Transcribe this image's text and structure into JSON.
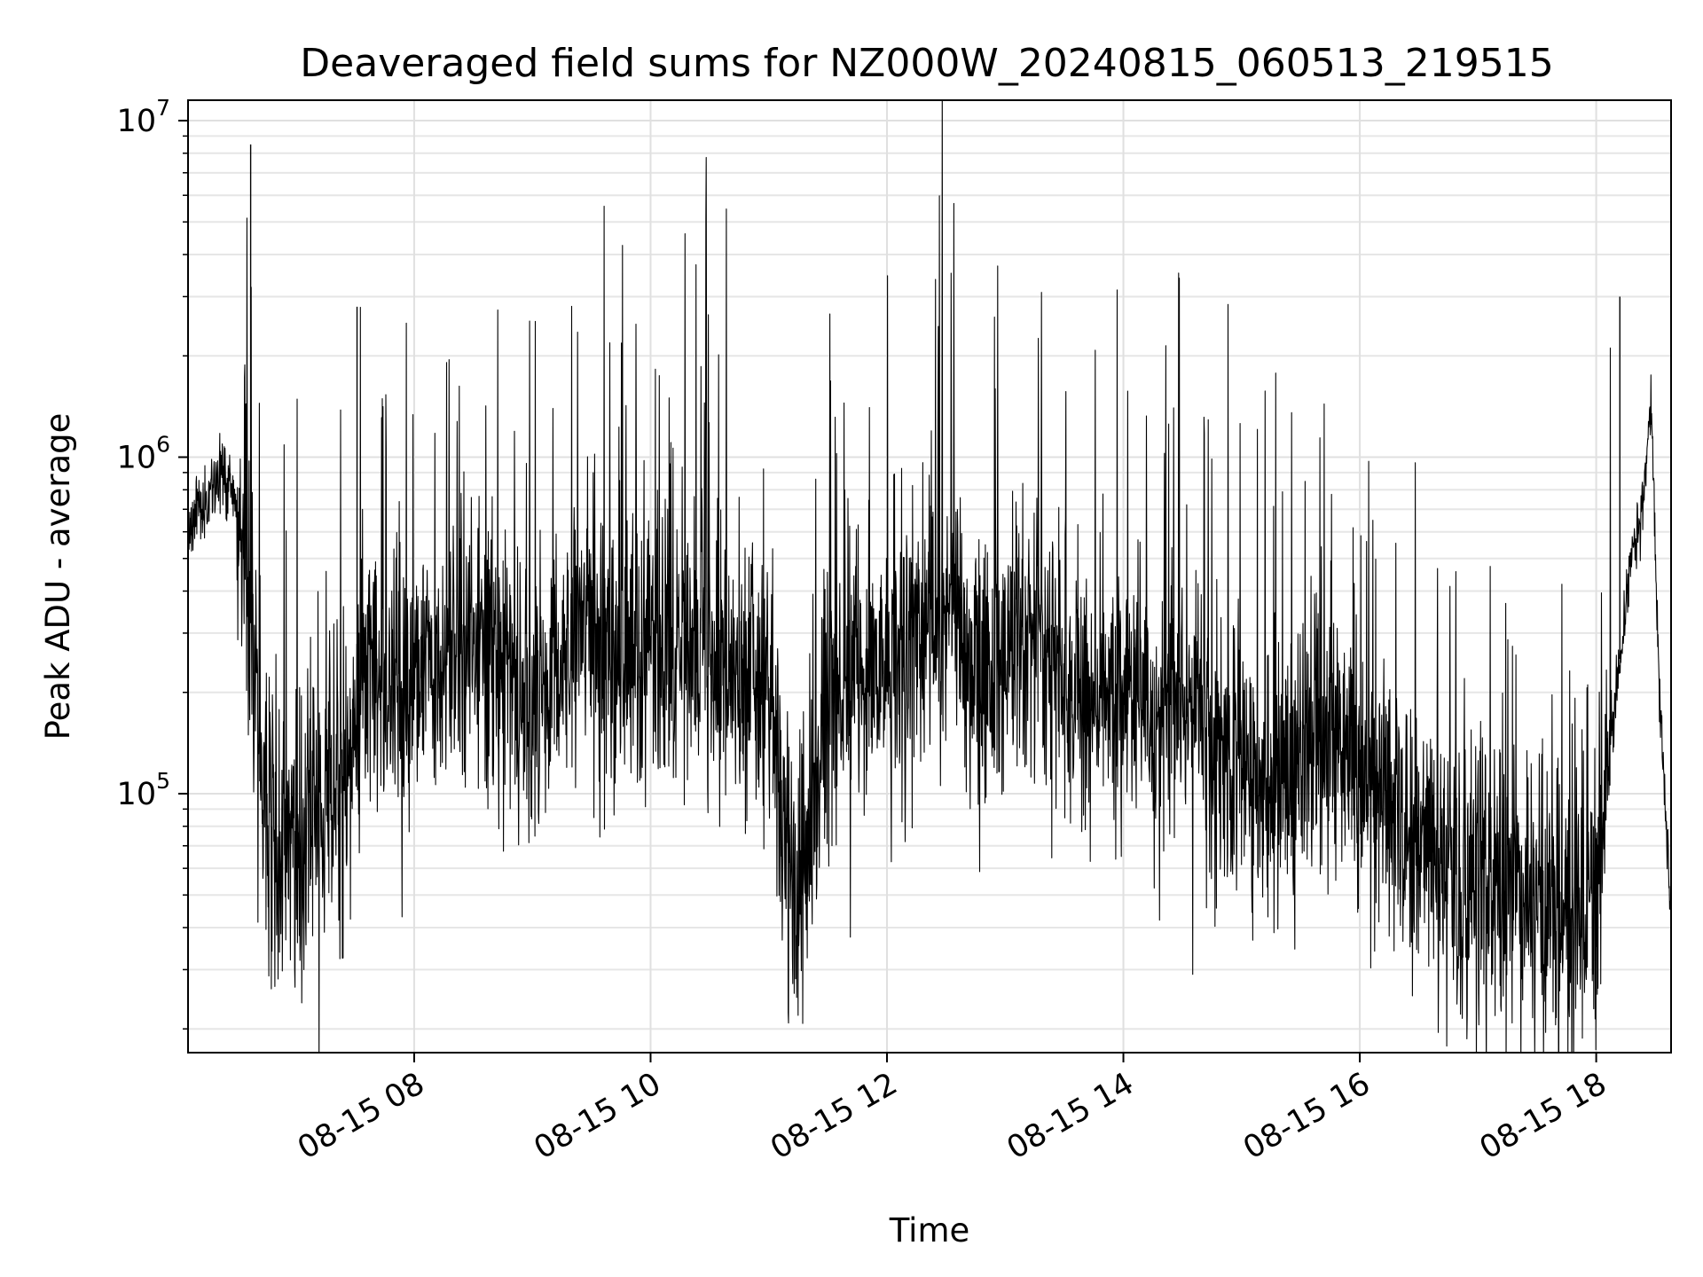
{
  "chart_data": {
    "type": "line",
    "title": "Deaveraged field sums for NZ000W_20240815_060513_219515",
    "xlabel": "Time",
    "ylabel": "Peak ADU - average",
    "yscale": "log",
    "ylim": [
      17000,
      11500000
    ],
    "xlim": [
      "2024-08-15 06:05:13",
      "2024-08-15 18:38:00"
    ],
    "grid": true,
    "line_color": "#000000",
    "x_ticks": [
      {
        "value": "2024-08-15 08:00",
        "label": "08-15 08"
      },
      {
        "value": "2024-08-15 10:00",
        "label": "08-15 10"
      },
      {
        "value": "2024-08-15 12:00",
        "label": "08-15 12"
      },
      {
        "value": "2024-08-15 14:00",
        "label": "08-15 14"
      },
      {
        "value": "2024-08-15 16:00",
        "label": "08-15 16"
      },
      {
        "value": "2024-08-15 18:00",
        "label": "08-15 18"
      }
    ],
    "y_ticks": [
      {
        "value": 100000,
        "base": "10",
        "exp": "5"
      },
      {
        "value": 1000000,
        "base": "10",
        "exp": "6"
      },
      {
        "value": 10000000,
        "base": "10",
        "exp": "7"
      }
    ],
    "series": [
      {
        "x": [
          "2024-08-15 06:05",
          "2024-08-15 06:10",
          "2024-08-15 06:16",
          "2024-08-15 06:22",
          "2024-08-15 06:28",
          "2024-08-15 06:34",
          "2024-08-15 06:40",
          "2024-08-15 06:46",
          "2024-08-15 06:52",
          "2024-08-15 06:58",
          "2024-08-15 07:04",
          "2024-08-15 07:10",
          "2024-08-15 07:16",
          "2024-08-15 07:22",
          "2024-08-15 07:28",
          "2024-08-15 07:34",
          "2024-08-15 07:40",
          "2024-08-15 07:46",
          "2024-08-15 07:52",
          "2024-08-15 08:00",
          "2024-08-15 08:15",
          "2024-08-15 08:30",
          "2024-08-15 08:45",
          "2024-08-15 09:00",
          "2024-08-15 09:15",
          "2024-08-15 09:30",
          "2024-08-15 09:45",
          "2024-08-15 10:00",
          "2024-08-15 10:15",
          "2024-08-15 10:30",
          "2024-08-15 10:45",
          "2024-08-15 11:00",
          "2024-08-15 11:10",
          "2024-08-15 11:16",
          "2024-08-15 11:22",
          "2024-08-15 11:30",
          "2024-08-15 11:45",
          "2024-08-15 12:00",
          "2024-08-15 12:15",
          "2024-08-15 12:30",
          "2024-08-15 12:45",
          "2024-08-15 13:00",
          "2024-08-15 13:15",
          "2024-08-15 13:30",
          "2024-08-15 13:45",
          "2024-08-15 14:00",
          "2024-08-15 14:15",
          "2024-08-15 14:30",
          "2024-08-15 14:45",
          "2024-08-15 15:00",
          "2024-08-15 15:15",
          "2024-08-15 15:30",
          "2024-08-15 15:45",
          "2024-08-15 16:00",
          "2024-08-15 16:15",
          "2024-08-15 16:30",
          "2024-08-15 16:45",
          "2024-08-15 17:00",
          "2024-08-15 17:15",
          "2024-08-15 17:30",
          "2024-08-15 17:45",
          "2024-08-15 18:00",
          "2024-08-15 18:10",
          "2024-08-15 18:18",
          "2024-08-15 18:24",
          "2024-08-15 18:28",
          "2024-08-15 18:32",
          "2024-08-15 18:38"
        ],
        "y": [
          600000,
          700000,
          750000,
          900000,
          800000,
          650000,
          180000,
          100000,
          75000,
          70000,
          65000,
          80000,
          85000,
          90000,
          150000,
          300000,
          280000,
          200000,
          180000,
          220000,
          250000,
          300000,
          260000,
          180000,
          250000,
          300000,
          230000,
          280000,
          260000,
          290000,
          200000,
          230000,
          60000,
          40000,
          110000,
          150000,
          230000,
          300000,
          280000,
          350000,
          220000,
          240000,
          260000,
          230000,
          200000,
          190000,
          170000,
          180000,
          150000,
          110000,
          95000,
          130000,
          140000,
          120000,
          100000,
          70000,
          60000,
          55000,
          50000,
          45000,
          42000,
          45000,
          200000,
          500000,
          750000,
          1500000,
          200000,
          45000
        ]
      }
    ],
    "annotations": [
      {
        "x": "2024-08-15 06:37",
        "y": 8500000,
        "text": ""
      },
      {
        "x": "2024-08-15 07:31",
        "y": 2800000,
        "text": ""
      },
      {
        "x": "2024-08-15 18:12",
        "y": 3000000,
        "text": ""
      }
    ]
  }
}
